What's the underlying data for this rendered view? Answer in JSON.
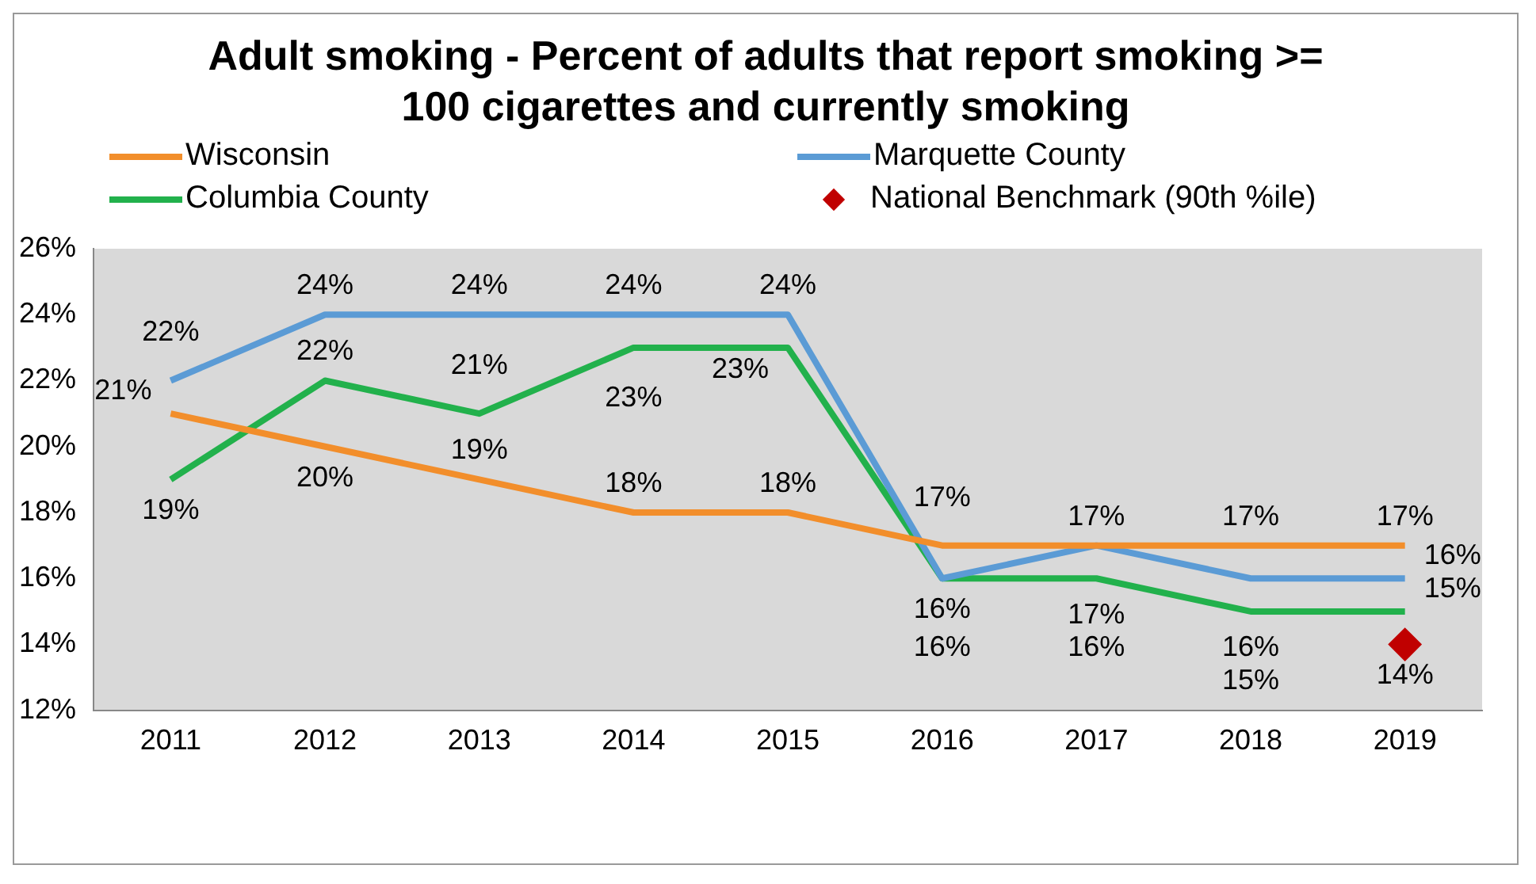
{
  "chart_data": {
    "type": "line",
    "title": "Adult smoking - Percent of adults that report smoking >= 100 cigarettes and currently smoking",
    "categories": [
      "2011",
      "2012",
      "2013",
      "2014",
      "2015",
      "2016",
      "2017",
      "2018",
      "2019"
    ],
    "series": [
      {
        "name": "Wisconsin",
        "color": "#f28e2b",
        "values": [
          21,
          20,
          19,
          18,
          18,
          17,
          17,
          17,
          17
        ],
        "value_labels": [
          "21%",
          "20%",
          "19%",
          "18%",
          "18%",
          "17%",
          "17%",
          "17%",
          "17%"
        ]
      },
      {
        "name": "Marquette County",
        "color": "#5b9bd5",
        "values": [
          22,
          24,
          24,
          24,
          24,
          16,
          17,
          16,
          16
        ],
        "value_labels": [
          "22%",
          "24%",
          "24%",
          "24%",
          "24%",
          "16%",
          "17%",
          "16%",
          "16%"
        ]
      },
      {
        "name": "Columbia County",
        "color": "#22b14c",
        "values": [
          19,
          22,
          21,
          23,
          23,
          16,
          16,
          15,
          15
        ],
        "value_labels": [
          "19%",
          "22%",
          "21%",
          "23%",
          "23%",
          "16%",
          "16%",
          "15%",
          "15%"
        ]
      },
      {
        "name": "National Benchmark (90th %ile)",
        "type": "scatter",
        "marker": "diamond",
        "color": "#c00000",
        "values": [
          null,
          null,
          null,
          null,
          null,
          null,
          null,
          null,
          14
        ],
        "value_labels": [
          null,
          null,
          null,
          null,
          null,
          null,
          null,
          null,
          "14%"
        ]
      }
    ],
    "ylim": [
      12,
      26
    ],
    "yticks": [
      {
        "value": 12,
        "label": "12%"
      },
      {
        "value": 14,
        "label": "14%"
      },
      {
        "value": 16,
        "label": "16%"
      },
      {
        "value": 18,
        "label": "18%"
      },
      {
        "value": 20,
        "label": "20%"
      },
      {
        "value": 22,
        "label": "22%"
      },
      {
        "value": 24,
        "label": "24%"
      },
      {
        "value": 26,
        "label": "26%"
      }
    ],
    "grid": false,
    "legend": "top"
  }
}
